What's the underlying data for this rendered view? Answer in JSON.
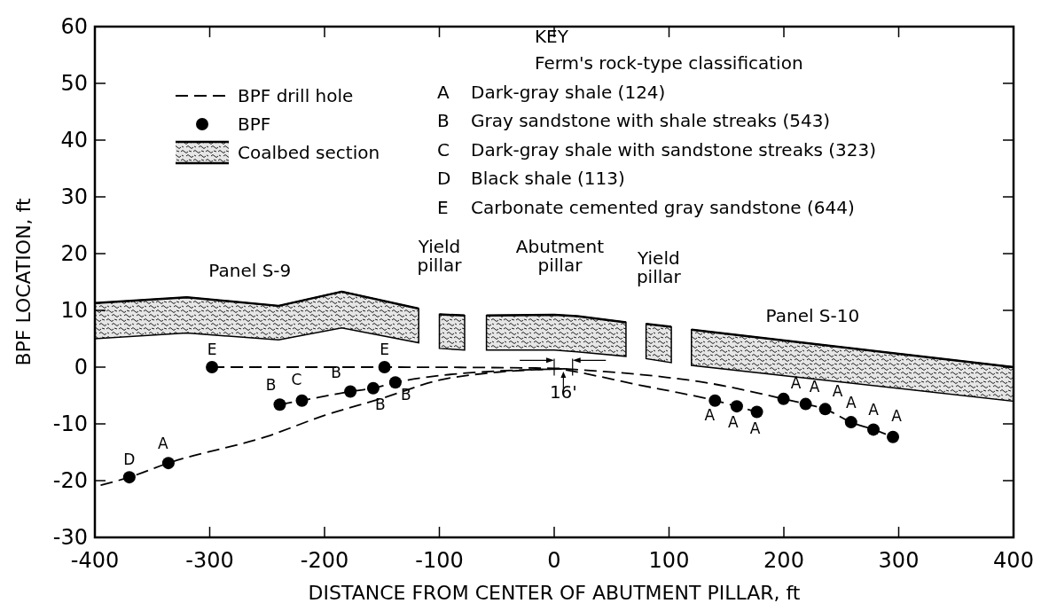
{
  "chart_data": {
    "type": "scatter",
    "xlabel": "DISTANCE FROM CENTER OF ABUTMENT PILLAR, ft",
    "ylabel": "BPF LOCATION, ft",
    "xlim": [
      -400,
      400
    ],
    "xticks": [
      {
        "value": -400,
        "label": "-400"
      },
      -300,
      -200,
      -100,
      0,
      100,
      200,
      300,
      400
    ],
    "ylim": [
      -30,
      60
    ],
    "yticks": [
      -30,
      -20,
      -10,
      0,
      10,
      20,
      30,
      40,
      50,
      60
    ],
    "grid": false,
    "legend": "top left",
    "line_style": "dashed",
    "series": [
      {
        "name": "Coalbed section",
        "type": "line",
        "line_style": "solid",
        "color": "#000000",
        "x": [
          -400,
          -320,
          -240,
          -185,
          -118,
          -109,
          -100,
          -78,
          -68,
          -59,
          0,
          20,
          62.5,
          71,
          80,
          102,
          110,
          119.5,
          400
        ],
        "values": [
          11.3,
          12.3,
          10.8,
          13.3,
          10.3,
          null,
          9.3,
          9.1,
          null,
          9.1,
          9.2,
          9.0,
          7.9,
          null,
          7.6,
          7.1,
          null,
          6.6,
          0
        ],
        "upper": [
          11.3,
          12.3,
          10.8,
          13.3,
          10.3,
          null,
          9.3,
          9.1,
          null,
          9.1,
          9.2,
          9.0,
          7.9,
          null,
          7.6,
          7.1,
          null,
          6.6,
          0
        ],
        "lower": [
          5,
          6.0,
          4.8,
          6.9,
          4.3,
          null,
          3.3,
          3.0,
          null,
          3.0,
          3.0,
          2.7,
          1.9,
          null,
          1.5,
          0.8,
          null,
          0.3,
          -6
        ]
      },
      {
        "name": "BPF drill hole",
        "type": "line",
        "color": "#000000",
        "x": [
          -298,
          -148,
          0,
          10
        ],
        "values": [
          0,
          0,
          -0.2,
          -0.3
        ]
      },
      {
        "type": "line",
        "color": "#000000",
        "x": [
          -239,
          -220,
          -177.5,
          -157.6,
          -138.3,
          -100,
          -50,
          10
        ],
        "values": [
          -6.6,
          -5.9,
          -4.3,
          -3.7,
          -2.7,
          -1.5,
          -0.7,
          -0.3
        ]
      },
      {
        "type": "line",
        "color": "#000000",
        "x": [
          -395,
          -370,
          -336,
          -250,
          -200,
          -150,
          -100,
          -50,
          10
        ],
        "values": [
          -20.8,
          -19.4,
          -16.9,
          -12.2,
          -8.5,
          -5.5,
          -2.3,
          -0.9,
          -0.3
        ]
      },
      {
        "type": "line",
        "color": "#000000",
        "x": [
          10,
          98,
          128,
          199.7,
          219,
          236,
          258.5,
          278,
          295
        ],
        "values": [
          -0.3,
          -1.8,
          -2.6,
          -5.6,
          -6.5,
          -7.4,
          -9.7,
          -11,
          -12.3
        ]
      },
      {
        "type": "line",
        "color": "#000000",
        "x": [
          10,
          21,
          68,
          140,
          159,
          176.5
        ],
        "values": [
          -0.5,
          -0.9,
          -2.9,
          -5.9,
          -6.9,
          -7.9
        ]
      },
      {
        "name": "BPF",
        "marker": "circle",
        "color": "#000000",
        "x": [
          -370,
          -336,
          -298,
          -239,
          -219.7,
          -177.5,
          -157.6,
          -147.8,
          -138.3,
          140,
          159,
          176.5,
          199.7,
          219,
          236,
          258.5,
          278,
          295
        ],
        "values": [
          -19.4,
          -16.9,
          0,
          -6.6,
          -5.9,
          -4.3,
          -3.7,
          0,
          -2.7,
          -5.9,
          -6.9,
          -7.9,
          -5.6,
          -6.5,
          -7.4,
          -9.7,
          -11,
          -12.3
        ],
        "value_labels": [
          "D",
          "A",
          "E",
          "B",
          "C",
          "B",
          "B",
          "E",
          "B",
          "A",
          "A",
          "A",
          "A",
          "A",
          "A",
          "A",
          "A",
          "A"
        ]
      }
    ],
    "annotations": [
      "Panel S-9",
      "Yield pillar",
      "Abutment pillar",
      "Yield pillar",
      "Panel S-10",
      "16'",
      "KEY",
      "Ferm's rock-type classification",
      "A Dark-gray shale (124)",
      "B Gray sandstone with shale streaks (543)",
      "C Dark-gray shale with sandstone streaks (323)",
      "D Black shale (113)",
      "E Carbonate cemented gray sandstone (644)"
    ]
  }
}
